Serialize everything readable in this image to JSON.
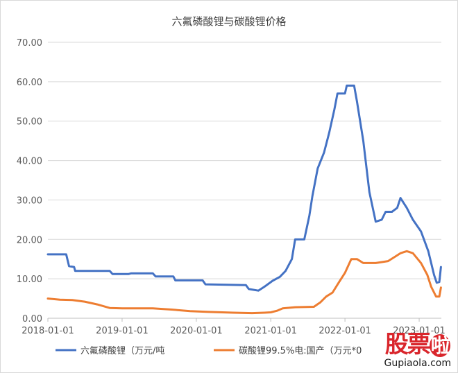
{
  "chart_data": {
    "type": "line",
    "title": "六氟磷酸锂与碳酸锂价格",
    "xlabel": "",
    "ylabel": "",
    "ylim": [
      0,
      70
    ],
    "yticks": [
      "0.00",
      "10.00",
      "20.00",
      "30.00",
      "40.00",
      "50.00",
      "60.00",
      "70.00"
    ],
    "xlim": [
      "2018-01-01",
      "2023-04-20"
    ],
    "xticks": [
      "2018-01-01",
      "2019-01-01",
      "2020-01-01",
      "2021-01-01",
      "2022-01-01",
      "2023-01-01"
    ],
    "grid": "horizontal",
    "legend": "bottom",
    "series": [
      {
        "name": "六氟磷酸锂（万元/吨",
        "color": "#4472c4",
        "points": [
          [
            "2018-01-01",
            16.2
          ],
          [
            "2018-04-01",
            16.2
          ],
          [
            "2018-04-15",
            13.2
          ],
          [
            "2018-05-10",
            13.0
          ],
          [
            "2018-05-15",
            12.0
          ],
          [
            "2018-11-01",
            12.0
          ],
          [
            "2018-11-15",
            11.2
          ],
          [
            "2019-02-01",
            11.2
          ],
          [
            "2019-02-15",
            11.4
          ],
          [
            "2019-06-01",
            11.4
          ],
          [
            "2019-06-15",
            10.6
          ],
          [
            "2019-09-10",
            10.6
          ],
          [
            "2019-09-20",
            9.6
          ],
          [
            "2020-02-01",
            9.6
          ],
          [
            "2020-02-15",
            8.6
          ],
          [
            "2020-09-01",
            8.4
          ],
          [
            "2020-09-15",
            7.4
          ],
          [
            "2020-11-01",
            7.0
          ],
          [
            "2020-12-01",
            8.0
          ],
          [
            "2021-01-10",
            9.5
          ],
          [
            "2021-02-15",
            10.5
          ],
          [
            "2021-03-15",
            12.0
          ],
          [
            "2021-04-15",
            15.0
          ],
          [
            "2021-05-01",
            20.0
          ],
          [
            "2021-06-15",
            20.0
          ],
          [
            "2021-07-10",
            26.0
          ],
          [
            "2021-07-25",
            31.0
          ],
          [
            "2021-08-20",
            38.0
          ],
          [
            "2021-09-20",
            42.0
          ],
          [
            "2021-10-15",
            47.0
          ],
          [
            "2021-11-10",
            53.0
          ],
          [
            "2021-11-25",
            57.0
          ],
          [
            "2022-01-01",
            57.0
          ],
          [
            "2022-01-10",
            59.0
          ],
          [
            "2022-02-15",
            59.0
          ],
          [
            "2022-03-01",
            55.0
          ],
          [
            "2022-04-01",
            45.0
          ],
          [
            "2022-05-01",
            32.0
          ],
          [
            "2022-06-01",
            24.5
          ],
          [
            "2022-07-01",
            25.0
          ],
          [
            "2022-07-20",
            27.0
          ],
          [
            "2022-08-20",
            27.0
          ],
          [
            "2022-09-15",
            28.0
          ],
          [
            "2022-10-01",
            30.5
          ],
          [
            "2022-11-01",
            28.0
          ],
          [
            "2022-12-01",
            25.0
          ],
          [
            "2023-01-10",
            22.0
          ],
          [
            "2023-02-15",
            17.0
          ],
          [
            "2023-03-15",
            11.0
          ],
          [
            "2023-03-28",
            9.0
          ],
          [
            "2023-04-10",
            9.2
          ],
          [
            "2023-04-18",
            13.0
          ]
        ]
      },
      {
        "name": "碳酸锂99.5%电:国产（万元*0",
        "color": "#ed7d31",
        "points": [
          [
            "2018-01-01",
            5.0
          ],
          [
            "2018-03-01",
            4.7
          ],
          [
            "2018-05-01",
            4.6
          ],
          [
            "2018-07-01",
            4.2
          ],
          [
            "2018-09-01",
            3.5
          ],
          [
            "2018-11-01",
            2.6
          ],
          [
            "2019-01-01",
            2.5
          ],
          [
            "2019-06-01",
            2.5
          ],
          [
            "2019-09-01",
            2.2
          ],
          [
            "2019-12-01",
            1.8
          ],
          [
            "2020-03-01",
            1.6
          ],
          [
            "2020-07-01",
            1.4
          ],
          [
            "2020-10-01",
            1.3
          ],
          [
            "2020-12-01",
            1.4
          ],
          [
            "2021-01-01",
            1.5
          ],
          [
            "2021-02-01",
            1.9
          ],
          [
            "2021-03-01",
            2.5
          ],
          [
            "2021-05-01",
            2.8
          ],
          [
            "2021-08-01",
            2.9
          ],
          [
            "2021-09-01",
            4.0
          ],
          [
            "2021-10-01",
            5.5
          ],
          [
            "2021-11-01",
            6.5
          ],
          [
            "2021-12-01",
            9.0
          ],
          [
            "2022-01-01",
            11.5
          ],
          [
            "2022-02-01",
            15.0
          ],
          [
            "2022-03-01",
            15.0
          ],
          [
            "2022-04-01",
            14.0
          ],
          [
            "2022-06-01",
            14.0
          ],
          [
            "2022-08-01",
            14.5
          ],
          [
            "2022-09-01",
            15.5
          ],
          [
            "2022-10-01",
            16.5
          ],
          [
            "2022-11-01",
            17.0
          ],
          [
            "2022-12-01",
            16.5
          ],
          [
            "2023-01-10",
            14.0
          ],
          [
            "2023-02-10",
            11.0
          ],
          [
            "2023-03-01",
            8.0
          ],
          [
            "2023-03-25",
            5.5
          ],
          [
            "2023-04-10",
            5.5
          ],
          [
            "2023-04-18",
            7.8
          ]
        ]
      }
    ]
  },
  "watermark": {
    "logo": [
      "股",
      "票",
      "啦"
    ],
    "url": "Gupiaola.com"
  }
}
